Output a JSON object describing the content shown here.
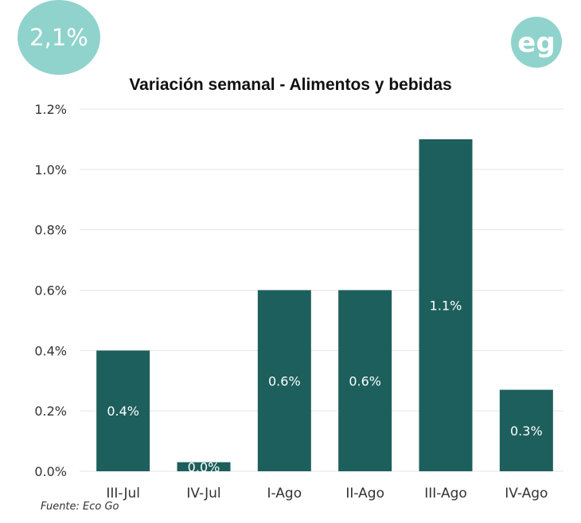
{
  "badge": {
    "text": "2,1%"
  },
  "logo": {
    "text": "eg",
    "icon": "eco-go-logo-icon"
  },
  "source": {
    "text": "Fuente: Eco Go"
  },
  "colors": {
    "bar": "#1d5f5c",
    "badge": "#8fd3cc",
    "grid": "#e6e6e6",
    "axis_text": "#333333",
    "label_text": "#ffffff"
  },
  "chart_data": {
    "type": "bar",
    "title": "Variación semanal - Alimentos y bebidas",
    "categories": [
      "III-Jul",
      "IV-Jul",
      "I-Ago",
      "II-Ago",
      "III-Ago",
      "IV-Ago"
    ],
    "values": [
      0.4,
      0.03,
      0.6,
      0.6,
      1.1,
      0.27
    ],
    "data_labels": [
      "0.4%",
      "0.0%",
      "0.6%",
      "0.6%",
      "1.1%",
      "0.3%"
    ],
    "ylim": [
      0,
      1.2
    ],
    "yticks": [
      0,
      0.2,
      0.4,
      0.6,
      0.8,
      1.0,
      1.2
    ],
    "ytick_labels": [
      "0.0%",
      "0.2%",
      "0.4%",
      "0.6%",
      "0.8%",
      "1.0%",
      "1.2%"
    ],
    "xlabel": "",
    "ylabel": "",
    "grid": true,
    "legend": "none"
  }
}
